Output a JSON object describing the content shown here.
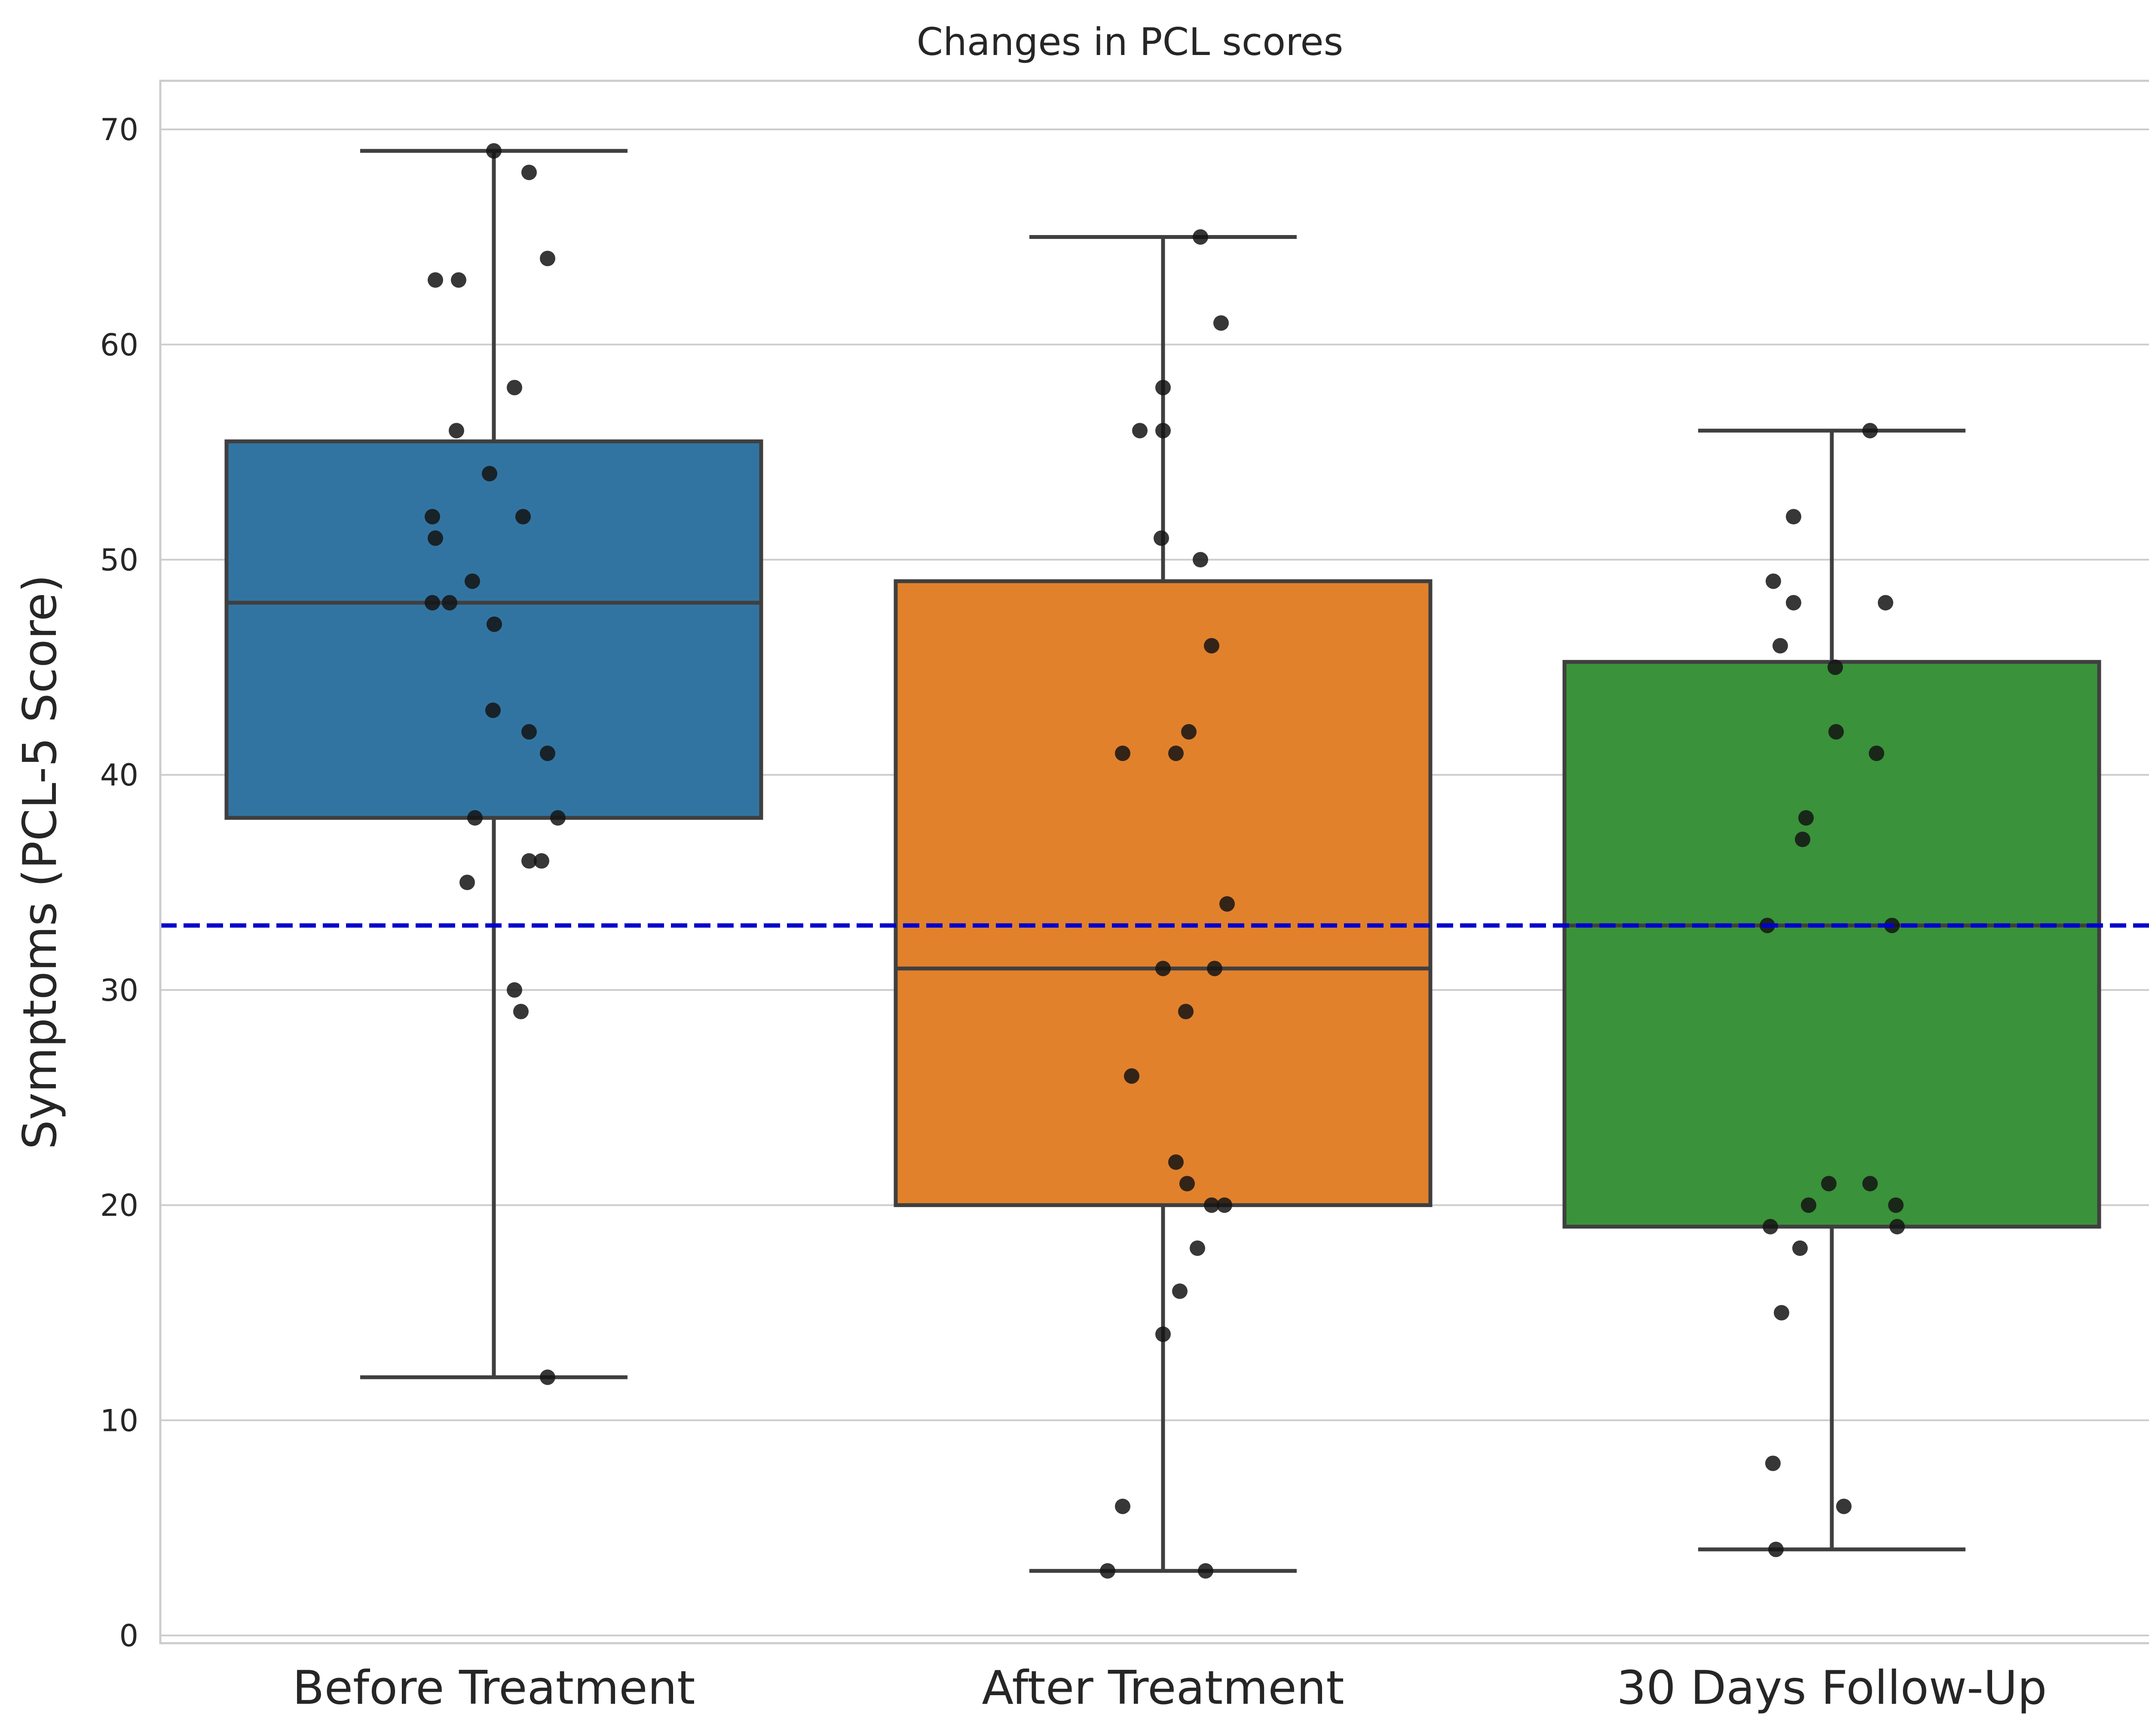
{
  "chart_data": {
    "type": "box",
    "title": "Changes in PCL scores",
    "xlabel": "",
    "ylabel": "Symptoms (PCL-5 Score)",
    "ylim": [
      0,
      72
    ],
    "yticks": [
      0,
      10,
      20,
      30,
      40,
      50,
      60,
      70
    ],
    "grid": true,
    "threshold": {
      "value": 33,
      "color": "#0000cc",
      "style": "dashed"
    },
    "categories": [
      "Before Treatment",
      "After Treatment",
      "30 Days Follow-Up"
    ],
    "boxes": [
      {
        "q1": 38,
        "median": 48,
        "q3": 55.5,
        "whisker_low": 12,
        "whisker_high": 69,
        "color": "#3274a1"
      },
      {
        "q1": 20,
        "median": 31,
        "q3": 49,
        "whisker_low": 3,
        "whisker_high": 65,
        "color": "#e1812c"
      },
      {
        "q1": 19,
        "median": 33,
        "q3": 45.25,
        "whisker_low": 4,
        "whisker_high": 56,
        "color": "#3a923a"
      }
    ],
    "points": [
      [
        69,
        68,
        64,
        63,
        63,
        58,
        56,
        54,
        52,
        52,
        51,
        49,
        48,
        48,
        47,
        43,
        42,
        41,
        38,
        38,
        36,
        36,
        35,
        30,
        29,
        12
      ],
      [
        65,
        61,
        58,
        56,
        56,
        51,
        50,
        46,
        42,
        41,
        41,
        34,
        31,
        31,
        29,
        26,
        22,
        21,
        20,
        20,
        18,
        16,
        14,
        6,
        3,
        3
      ],
      [
        56,
        52,
        49,
        48,
        48,
        46,
        45,
        42,
        41,
        38,
        37,
        33,
        33,
        21,
        21,
        20,
        20,
        19,
        19,
        18,
        15,
        8,
        6,
        4
      ]
    ]
  }
}
